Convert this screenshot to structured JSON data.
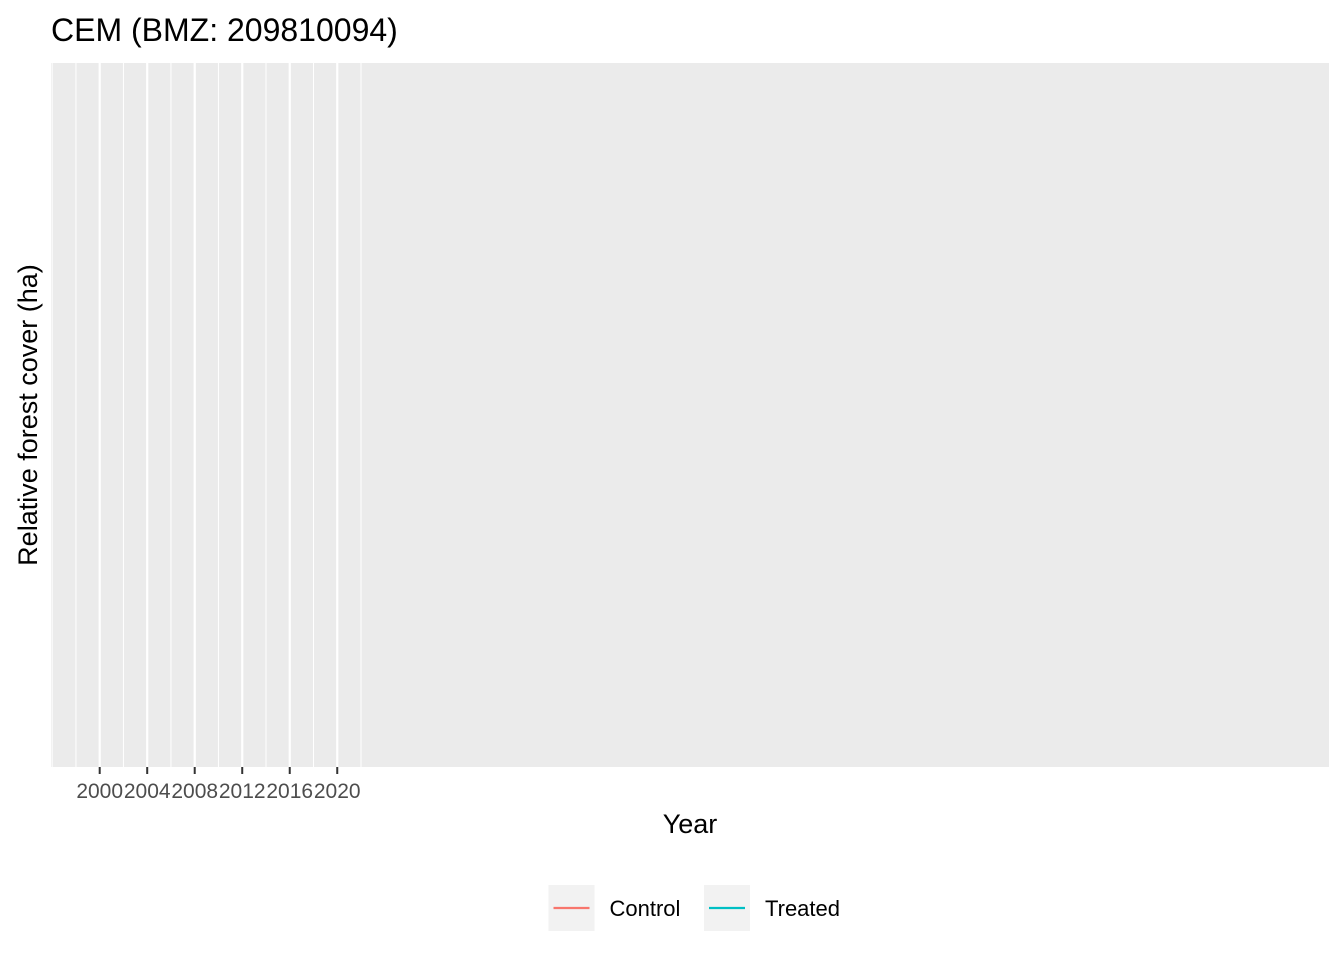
{
  "chart_data": {
    "type": "line",
    "title": "CEM (BMZ: 209810094)",
    "xlabel": "Year",
    "ylabel": "Relative forest cover (ha)",
    "x_major_ticks": [
      2000,
      2004,
      2008,
      2012,
      2016,
      2020
    ],
    "x_minor_ticks": [
      1998,
      2002,
      2006,
      2010,
      2014,
      2018,
      2022
    ],
    "xlim": [
      1995.9,
      2103.5
    ],
    "series": [
      {
        "name": "Control",
        "color": "#F8766D",
        "x": [],
        "y": []
      },
      {
        "name": "Treated",
        "color": "#00BFC4",
        "x": [],
        "y": []
      }
    ],
    "grid": true,
    "panel_background": "#EBEBEB",
    "legend_position": "bottom"
  }
}
